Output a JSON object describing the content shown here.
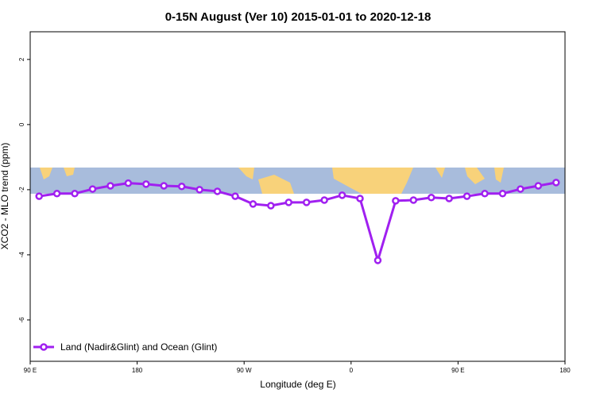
{
  "chart_data": {
    "type": "line",
    "title": "0-15N August (Ver 10)   2015-01-01 to 2020-12-18",
    "x_label": "Longitude (deg E)",
    "y_label": "XCO2 - MLO trend (ppm)",
    "x": [
      97.5,
      112.5,
      127.5,
      142.5,
      157.5,
      172.5,
      187.5,
      202.5,
      217.5,
      232.5,
      247.5,
      262.5,
      277.5,
      292.5,
      307.5,
      322.5,
      337.5,
      352.5,
      367.5,
      382.5,
      397.5,
      412.5,
      427.5,
      442.5,
      457.5,
      472.5,
      487.5,
      502.5,
      517.5,
      532.5
    ],
    "series": [
      {
        "name": "Land (Nadir&Glint) and Ocean (Glint)",
        "color": "#a020f0",
        "values": [
          -2.2,
          -2.12,
          -2.12,
          -1.98,
          -1.88,
          -1.8,
          -1.83,
          -1.88,
          -1.9,
          -2.0,
          -2.05,
          -2.2,
          -2.44,
          -2.49,
          -2.39,
          -2.39,
          -2.32,
          -2.17,
          -2.27,
          -4.17,
          -2.34,
          -2.32,
          -2.24,
          -2.27,
          -2.2,
          -2.12,
          -2.12,
          -1.98,
          -1.88,
          -1.78
        ]
      }
    ],
    "xlim": [
      90,
      540
    ],
    "xticks": [
      {
        "value": 90,
        "label": "90 E"
      },
      {
        "value": 180,
        "label": "180"
      },
      {
        "value": 270,
        "label": "90 W"
      },
      {
        "value": 360,
        "label": "0"
      },
      {
        "value": 450,
        "label": "90 E"
      },
      {
        "value": 540,
        "label": "180"
      }
    ],
    "ylim": [
      -7.27,
      2.85
    ],
    "yticks": [
      2,
      0,
      -2,
      -4,
      -6
    ],
    "legend": "bottomleft"
  }
}
